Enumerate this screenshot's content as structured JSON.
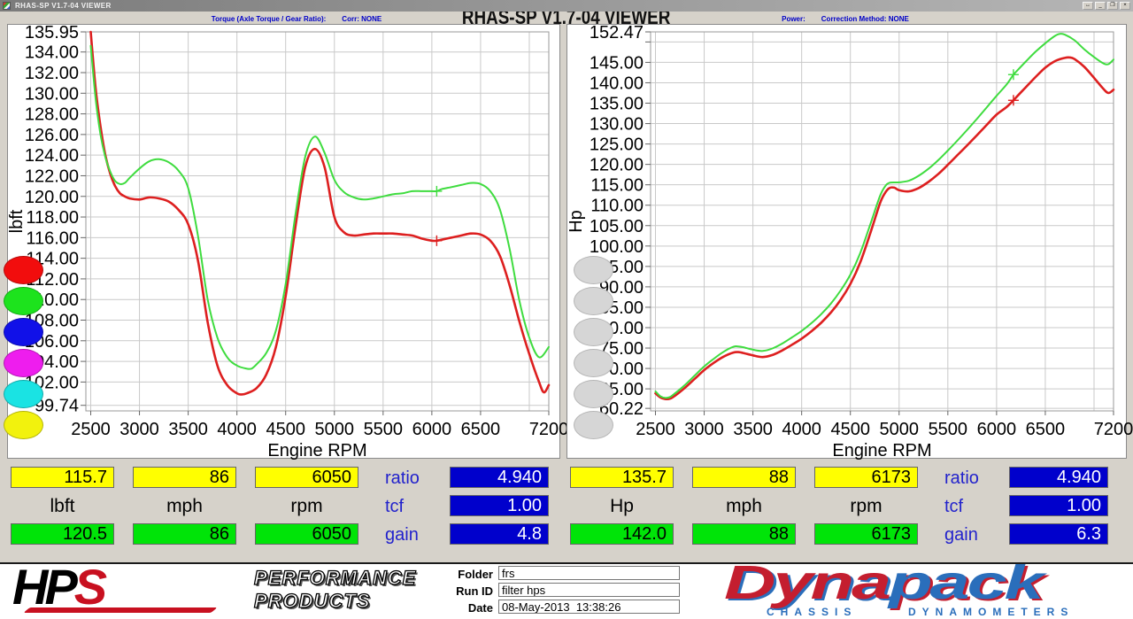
{
  "window": {
    "titlebar_title": "RHAS-SP V1.7-04  VIEWER",
    "main_title": "RHAS-SP V1.7-04  VIEWER",
    "controls": [
      {
        "name": "resize",
        "glyph": "↔"
      },
      {
        "name": "minimize",
        "glyph": "_"
      },
      {
        "name": "restore",
        "glyph": "❐"
      },
      {
        "name": "close",
        "glyph": "×"
      }
    ]
  },
  "headers": {
    "torque_label": "Torque (Axle Torque / Gear Ratio):",
    "torque_corr": "Corr: NONE",
    "power_label": "Power:",
    "power_corr": "Correction Method: NONE"
  },
  "legends": [
    {
      "panel": "torque",
      "buttons": [
        {
          "name": "red",
          "color": "#f20d0d"
        },
        {
          "name": "green",
          "color": "#1de31d"
        },
        {
          "name": "blue",
          "color": "#1111e8"
        },
        {
          "name": "magenta",
          "color": "#ee1dee"
        },
        {
          "name": "cyan",
          "color": "#1ae3e3"
        },
        {
          "name": "yellow",
          "color": "#f2f20d"
        }
      ]
    },
    {
      "panel": "power",
      "buttons": [
        {
          "name": "inactive-1",
          "color": "#d6d6d6"
        },
        {
          "name": "inactive-2",
          "color": "#d6d6d6"
        },
        {
          "name": "inactive-3",
          "color": "#d6d6d6"
        },
        {
          "name": "inactive-4",
          "color": "#d6d6d6"
        },
        {
          "name": "inactive-5",
          "color": "#d6d6d6"
        },
        {
          "name": "inactive-6",
          "color": "#d6d6d6"
        }
      ]
    }
  ],
  "chart_data": [
    {
      "id": "torque-chart",
      "type": "line",
      "title": "Torque (Axle Torque / Gear Ratio)",
      "xlabel": "Engine RPM",
      "ylabel": "lbft",
      "xlim": [
        2450,
        7200
      ],
      "ylim": [
        99.74,
        135.95
      ],
      "ylim_render": [
        99.2,
        135.95
      ],
      "grid": true,
      "xtick_values": [
        2500,
        3000,
        3500,
        4000,
        4500,
        5000,
        5500,
        6000,
        6500,
        7200
      ],
      "xtick_labels": [
        "2500",
        "3000",
        "3500",
        "4000",
        "4500",
        "5000",
        "5500",
        "6000",
        "6500",
        "7200"
      ],
      "xgrid": [
        2500,
        3000,
        3500,
        4000,
        4500,
        5000,
        5500,
        6000,
        6500,
        7000
      ],
      "ytick_values": [
        135.95,
        134,
        132,
        130,
        128,
        126,
        124,
        122,
        120,
        118,
        116,
        114,
        112,
        110,
        108,
        106,
        104,
        102,
        99.74
      ],
      "ytick_labels": [
        "135.95",
        "134.00",
        "132.00",
        "130.00",
        "128.00",
        "126.00",
        "124.00",
        "122.00",
        "120.00",
        "118.00",
        "116.00",
        "114.00",
        "112.00",
        "110.00",
        "108.00",
        "106.00",
        "104.00",
        "102.00",
        "99.74"
      ],
      "cursor": {
        "x": 6050,
        "values": [
          115.7,
          120.5
        ]
      },
      "series": [
        {
          "name": "red-run",
          "color": "#dd1f1f",
          "width": 2.6,
          "x": [
            2500,
            2550,
            2600,
            2650,
            2700,
            2750,
            2800,
            2850,
            2900,
            3000,
            3100,
            3200,
            3300,
            3400,
            3500,
            3600,
            3700,
            3800,
            3900,
            4000,
            4050,
            4100,
            4200,
            4300,
            4400,
            4500,
            4600,
            4700,
            4800,
            4900,
            5000,
            5100,
            5200,
            5300,
            5400,
            5500,
            5600,
            5700,
            5800,
            5900,
            6000,
            6050,
            6100,
            6200,
            6300,
            6400,
            6500,
            6600,
            6700,
            6800,
            6900,
            7000,
            7100,
            7150,
            7200
          ],
          "y": [
            135.95,
            130.5,
            126.8,
            124.0,
            122.2,
            121.0,
            120.3,
            120.0,
            119.8,
            119.7,
            119.9,
            119.8,
            119.5,
            118.7,
            117.3,
            113.8,
            107.8,
            103.6,
            101.7,
            100.9,
            100.8,
            100.9,
            101.4,
            102.7,
            105.4,
            110.3,
            117.0,
            122.8,
            124.6,
            122.8,
            118.0,
            116.5,
            116.2,
            116.3,
            116.4,
            116.4,
            116.4,
            116.3,
            116.2,
            115.9,
            115.7,
            115.7,
            115.8,
            116.0,
            116.2,
            116.4,
            116.3,
            115.7,
            114.2,
            111.3,
            107.8,
            104.7,
            102.0,
            101.0,
            101.7
          ]
        },
        {
          "name": "green-run",
          "color": "#3fdc3f",
          "width": 2.0,
          "x": [
            2500,
            2550,
            2600,
            2650,
            2700,
            2750,
            2800,
            2850,
            2900,
            3000,
            3100,
            3200,
            3300,
            3400,
            3500,
            3600,
            3700,
            3800,
            3900,
            4000,
            4100,
            4150,
            4200,
            4300,
            4400,
            4500,
            4600,
            4700,
            4800,
            4900,
            5000,
            5100,
            5200,
            5300,
            5400,
            5500,
            5600,
            5700,
            5800,
            5900,
            6000,
            6050,
            6100,
            6200,
            6300,
            6400,
            6500,
            6600,
            6700,
            6800,
            6900,
            7000,
            7100,
            7200
          ],
          "y": [
            134.6,
            129.5,
            126.0,
            123.8,
            122.4,
            121.5,
            121.2,
            121.3,
            121.8,
            122.7,
            123.4,
            123.6,
            123.3,
            122.5,
            120.8,
            116.2,
            110.0,
            106.3,
            104.4,
            103.6,
            103.3,
            103.3,
            103.7,
            104.8,
            107.0,
            111.5,
            118.2,
            123.8,
            125.8,
            124.2,
            121.6,
            120.4,
            119.9,
            119.7,
            119.8,
            120.0,
            120.2,
            120.3,
            120.5,
            120.5,
            120.5,
            120.5,
            120.7,
            120.9,
            121.1,
            121.3,
            121.2,
            120.5,
            118.7,
            114.8,
            109.8,
            106.3,
            104.4,
            105.4
          ]
        }
      ]
    },
    {
      "id": "power-chart",
      "type": "line",
      "title": "Power",
      "xlabel": "Engine RPM",
      "ylabel": "Hp",
      "xlim": [
        2450,
        7200
      ],
      "ylim": [
        60.22,
        152.47
      ],
      "ylim_render": [
        59.6,
        152.47
      ],
      "grid": true,
      "xtick_values": [
        2500,
        3000,
        3500,
        4000,
        4500,
        5000,
        5500,
        6000,
        6500,
        7200
      ],
      "xtick_labels": [
        "2500",
        "3000",
        "3500",
        "4000",
        "4500",
        "5000",
        "5500",
        "6000",
        "6500",
        "7200"
      ],
      "xgrid": [
        2500,
        3000,
        3500,
        4000,
        4500,
        5000,
        5500,
        6000,
        6500,
        7000
      ],
      "ytick_values": [
        152.47,
        150,
        145,
        140,
        135,
        130,
        125,
        120,
        115,
        110,
        105,
        100,
        95,
        90,
        85,
        80,
        75,
        70,
        65,
        60.22
      ],
      "ytick_labels": [
        "152.47",
        "",
        "145.00",
        "140.00",
        "135.00",
        "130.00",
        "125.00",
        "120.00",
        "115.00",
        "110.00",
        "105.00",
        "100.00",
        "95.00",
        "90.00",
        "85.00",
        "80.00",
        "75.00",
        "70.00",
        "65.00",
        "60.22"
      ],
      "cursor": {
        "x": 6173,
        "values": [
          135.7,
          142.0
        ]
      },
      "series": [
        {
          "name": "red-run",
          "color": "#dd1f1f",
          "width": 2.6,
          "x": [
            2500,
            2550,
            2600,
            2650,
            2700,
            2800,
            2900,
            3000,
            3100,
            3200,
            3300,
            3350,
            3400,
            3500,
            3600,
            3700,
            3800,
            3900,
            4000,
            4100,
            4200,
            4300,
            4400,
            4500,
            4600,
            4700,
            4800,
            4850,
            4900,
            4950,
            5000,
            5100,
            5200,
            5300,
            5400,
            5500,
            5600,
            5700,
            5800,
            5900,
            6000,
            6100,
            6173,
            6200,
            6300,
            6400,
            6500,
            6600,
            6700,
            6750,
            6800,
            6900,
            7000,
            7100,
            7150,
            7200
          ],
          "y": [
            63.9,
            62.9,
            62.5,
            62.6,
            63.3,
            65.2,
            67.4,
            69.6,
            71.4,
            72.9,
            73.9,
            74.0,
            73.8,
            73.2,
            72.8,
            73.3,
            74.4,
            75.8,
            77.3,
            79.1,
            81.2,
            83.7,
            86.8,
            90.7,
            95.9,
            102.8,
            110.2,
            112.8,
            114.2,
            114.3,
            113.7,
            113.4,
            114.2,
            115.7,
            117.6,
            119.9,
            122.3,
            124.7,
            127.2,
            129.7,
            132.2,
            134.0,
            135.7,
            136.4,
            138.9,
            141.4,
            143.7,
            145.3,
            146.1,
            146.2,
            145.8,
            143.9,
            141.2,
            138.4,
            137.5,
            138.3
          ]
        },
        {
          "name": "green-run",
          "color": "#3fdc3f",
          "width": 2.0,
          "x": [
            2500,
            2550,
            2600,
            2650,
            2700,
            2800,
            2900,
            3000,
            3100,
            3200,
            3300,
            3350,
            3400,
            3500,
            3600,
            3700,
            3800,
            3900,
            4000,
            4100,
            4200,
            4300,
            4400,
            4500,
            4600,
            4700,
            4800,
            4850,
            4900,
            5000,
            5100,
            5200,
            5300,
            5400,
            5500,
            5600,
            5700,
            5800,
            5900,
            6000,
            6100,
            6173,
            6200,
            6300,
            6400,
            6500,
            6600,
            6650,
            6700,
            6800,
            6900,
            7000,
            7100,
            7150,
            7200
          ],
          "y": [
            64.4,
            63.2,
            62.8,
            63.0,
            63.9,
            65.9,
            68.2,
            70.5,
            72.4,
            74.1,
            75.3,
            75.4,
            75.2,
            74.6,
            74.3,
            74.9,
            76.1,
            77.6,
            79.2,
            81.1,
            83.3,
            85.9,
            89.1,
            93.0,
            98.2,
            105.0,
            112.0,
            114.4,
            115.5,
            115.6,
            116.0,
            117.2,
            118.9,
            121.0,
            123.4,
            125.9,
            128.5,
            131.2,
            134.0,
            136.8,
            139.5,
            142.0,
            142.7,
            145.2,
            147.6,
            149.7,
            151.5,
            152.0,
            151.8,
            150.4,
            148.2,
            146.3,
            144.7,
            144.6,
            145.7
          ]
        }
      ]
    }
  ],
  "tables": [
    {
      "top_values": [
        "115.7",
        "86",
        "6050"
      ],
      "unit_labels": [
        "lbft",
        "mph",
        "rpm"
      ],
      "bottom_values": [
        "120.5",
        "86",
        "6050"
      ],
      "side": [
        {
          "label": "ratio",
          "value": "4.940"
        },
        {
          "label": "tcf",
          "value": "1.00"
        },
        {
          "label": "gain",
          "value": "4.8"
        }
      ]
    },
    {
      "top_values": [
        "135.7",
        "88",
        "6173"
      ],
      "unit_labels": [
        "Hp",
        "mph",
        "rpm"
      ],
      "bottom_values": [
        "142.0",
        "88",
        "6173"
      ],
      "side": [
        {
          "label": "ratio",
          "value": "4.940"
        },
        {
          "label": "tcf",
          "value": "1.00"
        },
        {
          "label": "gain",
          "value": "6.3"
        }
      ]
    }
  ],
  "footer": {
    "hps": {
      "hp": "HP",
      "s": "S",
      "line1": "PERFORMANCE",
      "line2": "PRODUCTS"
    },
    "fields": [
      {
        "label": "Folder",
        "value": "frs"
      },
      {
        "label": "Run ID",
        "value": "filter hps"
      },
      {
        "label": "Date",
        "value": "08-May-2013  13:38:26"
      }
    ],
    "dynapack": {
      "part1": "Dyna",
      "part2": "pack",
      "sub1": "CHASSIS",
      "sub2": "DYNAMOMETERS"
    }
  },
  "colors": {
    "curve_red": "#dd1f1f",
    "curve_green": "#3fdc3f",
    "box_yellow": "#ffff00",
    "box_green": "#00e408",
    "box_blue": "#0000cc",
    "label_blue": "#2222cc",
    "header_blue": "#0000c8",
    "hps_red": "#c81020",
    "dynapack_red": "#c41e2f",
    "dynapack_blue": "#2a6ebb",
    "background": "#d6d2ca"
  }
}
